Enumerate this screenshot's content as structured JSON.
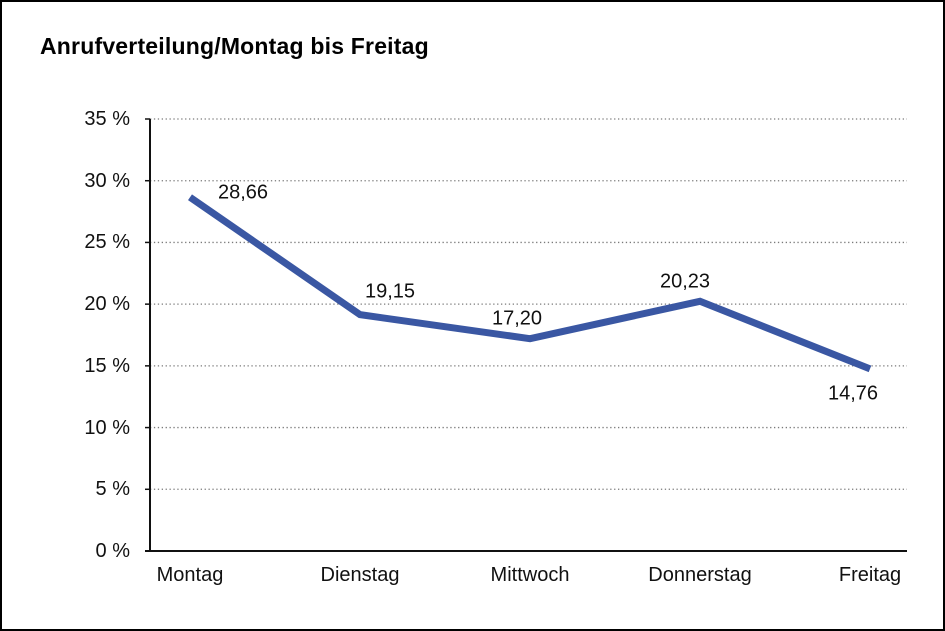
{
  "page": {
    "title": "Anrufverteilung/Montag bis Freitag"
  },
  "chart_data": {
    "type": "line",
    "title": "Anrufverteilung/Montag bis Freitag",
    "categories": [
      "Montag",
      "Dienstag",
      "Mittwoch",
      "Donnerstag",
      "Freitag"
    ],
    "values": [
      28.66,
      19.15,
      17.2,
      20.23,
      14.76
    ],
    "data_labels": [
      "28,66",
      "19,15",
      "17,20",
      "20,23",
      "14,76"
    ],
    "unit": "%",
    "ylim": [
      0,
      35
    ],
    "y_ticks": [
      0,
      5,
      10,
      15,
      20,
      25,
      30,
      35
    ],
    "y_tick_labels": [
      "0 %",
      "5 %",
      "10 %",
      "15 %",
      "20 %",
      "25 %",
      "30 %",
      "35 %"
    ],
    "xlabel": "",
    "ylabel": "",
    "grid": "horizontal-dotted",
    "legend": "none",
    "colors": {
      "series_line": "#3A57A3",
      "axis": "#111111",
      "gridline": "#7a7a7a",
      "text": "#111111",
      "background": "#ffffff"
    }
  }
}
